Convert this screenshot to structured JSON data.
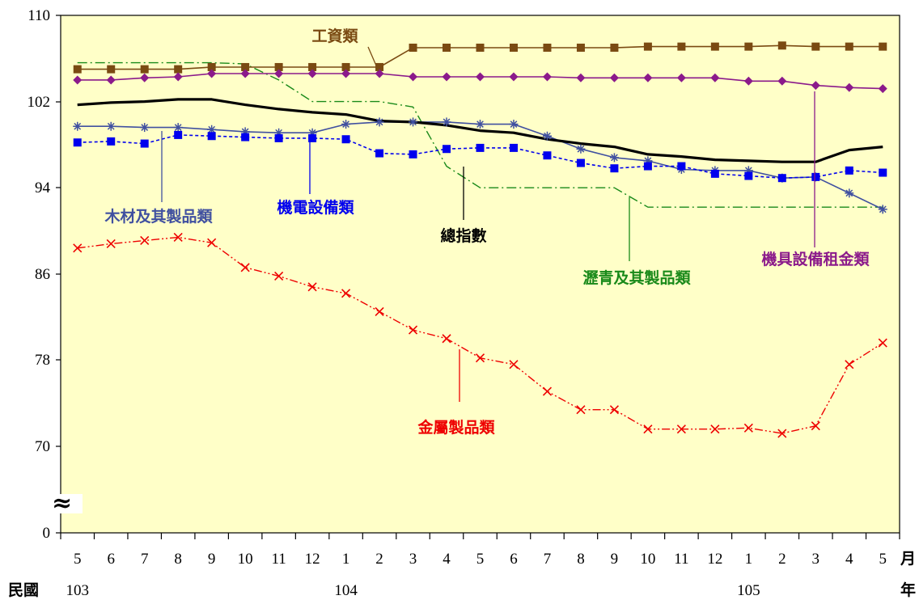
{
  "chart_data": {
    "type": "line",
    "categories": [
      "5",
      "6",
      "7",
      "8",
      "9",
      "10",
      "11",
      "12",
      "1",
      "2",
      "3",
      "4",
      "5",
      "6",
      "7",
      "8",
      "9",
      "10",
      "11",
      "12",
      "1",
      "2",
      "3",
      "4",
      "5"
    ],
    "x_unit_label": "月",
    "year_prefix": "民國",
    "year_suffix": "年",
    "year_labels": [
      {
        "index": 0,
        "text": "103"
      },
      {
        "index": 8,
        "text": "104"
      },
      {
        "index": 20,
        "text": "105"
      }
    ],
    "y_ticks": [
      "0",
      "70",
      "78",
      "86",
      "94",
      "102",
      "110"
    ],
    "axis_break_symbol": "≈",
    "grid": false,
    "series": [
      {
        "name": "工資類",
        "color": "#7a4a12",
        "values": [
          105.0,
          105.0,
          105.0,
          105.0,
          105.2,
          105.2,
          105.2,
          105.2,
          105.2,
          105.2,
          107.0,
          107.0,
          107.0,
          107.0,
          107.0,
          107.0,
          107.0,
          107.1,
          107.1,
          107.1,
          107.1,
          107.2,
          107.1,
          107.1,
          107.1
        ]
      },
      {
        "name": "機具設備租金類",
        "color": "#8b1a8b",
        "values": [
          104.0,
          104.0,
          104.2,
          104.3,
          104.6,
          104.6,
          104.6,
          104.6,
          104.6,
          104.6,
          104.3,
          104.3,
          104.3,
          104.3,
          104.3,
          104.2,
          104.2,
          104.2,
          104.2,
          104.2,
          103.9,
          103.9,
          103.5,
          103.3,
          103.2
        ]
      },
      {
        "name": "瀝青及其製品類",
        "color": "#1a8a1a",
        "values": [
          105.6,
          105.6,
          105.6,
          105.6,
          105.6,
          105.5,
          104.0,
          102.0,
          102.0,
          102.0,
          101.5,
          96.0,
          94.0,
          94.0,
          94.0,
          94.0,
          94.0,
          92.2,
          92.2,
          92.2,
          92.2,
          92.2,
          92.2,
          92.2,
          92.2
        ]
      },
      {
        "name": "總指數",
        "color": "#000000",
        "values": [
          101.7,
          101.9,
          102.0,
          102.2,
          102.2,
          101.7,
          101.3,
          101.0,
          100.8,
          100.2,
          100.1,
          99.8,
          99.3,
          99.1,
          98.5,
          98.1,
          97.8,
          97.1,
          96.9,
          96.6,
          96.5,
          96.4,
          96.4,
          97.5,
          97.8
        ]
      },
      {
        "name": "木材及其製品類",
        "color": "#4050a0",
        "values": [
          99.7,
          99.7,
          99.6,
          99.6,
          99.4,
          99.2,
          99.1,
          99.1,
          99.9,
          100.1,
          100.1,
          100.1,
          99.9,
          99.9,
          98.8,
          97.6,
          96.8,
          96.5,
          95.7,
          95.6,
          95.6,
          94.9,
          95.0,
          93.5,
          92.0
        ]
      },
      {
        "name": "機電設備類",
        "color": "#0000ee",
        "values": [
          98.2,
          98.3,
          98.1,
          98.9,
          98.8,
          98.7,
          98.6,
          98.6,
          98.5,
          97.2,
          97.1,
          97.6,
          97.7,
          97.7,
          97.0,
          96.3,
          95.8,
          96.0,
          96.0,
          95.3,
          95.1,
          94.9,
          95.0,
          95.6,
          95.4
        ]
      },
      {
        "name": "金屬製品類",
        "color": "#ee0000",
        "values": [
          88.4,
          88.8,
          89.1,
          89.4,
          88.9,
          86.6,
          85.8,
          84.8,
          84.2,
          82.5,
          80.8,
          80.0,
          78.2,
          77.6,
          75.1,
          73.4,
          73.4,
          71.6,
          71.6,
          71.6,
          71.7,
          71.2,
          71.9,
          77.6,
          79.6
        ]
      }
    ]
  }
}
